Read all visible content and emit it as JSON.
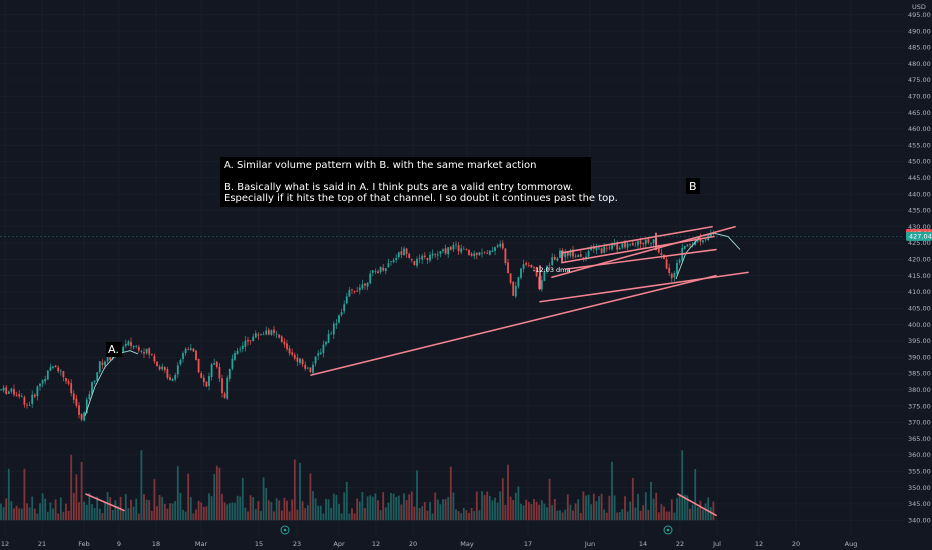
{
  "chart_data": {
    "type": "candlestick",
    "currency": "USD",
    "y_axis": {
      "min": 337,
      "max": 498,
      "ticks": [
        "495.00",
        "490.00",
        "485.00",
        "480.00",
        "475.00",
        "470.00",
        "465.00",
        "460.00",
        "455.00",
        "450.00",
        "445.00",
        "440.00",
        "435.00",
        "430.00",
        "425.00",
        "420.00",
        "415.00",
        "410.00",
        "405.00",
        "400.00",
        "395.00",
        "390.00",
        "385.00",
        "380.00",
        "375.00",
        "370.00",
        "365.00",
        "360.00",
        "355.00",
        "350.00",
        "345.00",
        "340.00"
      ],
      "price_tags": [
        {
          "value": 427.91,
          "label": "427.91",
          "color": "#ef5350"
        },
        {
          "value": 427.04,
          "label": "427.04",
          "color": "#26a69a"
        }
      ]
    },
    "x_axis": {
      "ticks": [
        "12",
        "21",
        "Feb",
        "9",
        "18",
        "Mar",
        "15",
        "23",
        "Apr",
        "12",
        "20",
        "May",
        "17",
        "Jun",
        "14",
        "22",
        "Jul",
        "12",
        "20",
        "Aug"
      ]
    },
    "price_anchors": [
      [
        0,
        380
      ],
      [
        18,
        379
      ],
      [
        28,
        375
      ],
      [
        40,
        382
      ],
      [
        55,
        388
      ],
      [
        66,
        383
      ],
      [
        75,
        376
      ],
      [
        82,
        370
      ],
      [
        90,
        380
      ],
      [
        100,
        388
      ],
      [
        115,
        391
      ],
      [
        128,
        394
      ],
      [
        140,
        393
      ],
      [
        150,
        391
      ],
      [
        160,
        387
      ],
      [
        172,
        383
      ],
      [
        182,
        391
      ],
      [
        190,
        394
      ],
      [
        198,
        387
      ],
      [
        206,
        380
      ],
      [
        212,
        388
      ],
      [
        218,
        386
      ],
      [
        224,
        377
      ],
      [
        228,
        386
      ],
      [
        236,
        391
      ],
      [
        246,
        395
      ],
      [
        258,
        397
      ],
      [
        268,
        398
      ],
      [
        278,
        396
      ],
      [
        288,
        392
      ],
      [
        300,
        389
      ],
      [
        310,
        386
      ],
      [
        322,
        393
      ],
      [
        336,
        401
      ],
      [
        350,
        410
      ],
      [
        362,
        412
      ],
      [
        374,
        416
      ],
      [
        386,
        418
      ],
      [
        396,
        421
      ],
      [
        406,
        423
      ],
      [
        414,
        419
      ],
      [
        422,
        420
      ],
      [
        432,
        421
      ],
      [
        442,
        422
      ],
      [
        452,
        424
      ],
      [
        462,
        423
      ],
      [
        472,
        421
      ],
      [
        480,
        423
      ],
      [
        488,
        421
      ],
      [
        494,
        424
      ],
      [
        499,
        425
      ],
      [
        503,
        423
      ],
      [
        508,
        415
      ],
      [
        513,
        409
      ],
      [
        518,
        415
      ],
      [
        524,
        418
      ],
      [
        530,
        419
      ],
      [
        536,
        416
      ],
      [
        540,
        410
      ],
      [
        545,
        417
      ],
      [
        552,
        420
      ],
      [
        562,
        422
      ],
      [
        572,
        422
      ],
      [
        582,
        421
      ],
      [
        592,
        423
      ],
      [
        602,
        423
      ],
      [
        612,
        424
      ],
      [
        622,
        424
      ],
      [
        632,
        424
      ],
      [
        642,
        425
      ],
      [
        652,
        426
      ],
      [
        660,
        422
      ],
      [
        666,
        418
      ],
      [
        672,
        415
      ],
      [
        678,
        419
      ],
      [
        684,
        424
      ],
      [
        690,
        425
      ],
      [
        698,
        426
      ],
      [
        706,
        427
      ],
      [
        712,
        428
      ],
      [
        716,
        428
      ]
    ],
    "volume_baseline": 340,
    "annotations": [
      {
        "kind": "note_box",
        "lines": [
          "A. Similar volume pattern with B. with the same market action",
          "",
          "B. Basically what is said in A. I think puts are a valid entry tommorow.",
          "Especially if it hits the top of that channel. I so doubt it continues past the top."
        ]
      },
      {
        "kind": "label",
        "text": "A."
      },
      {
        "kind": "label",
        "text": "B"
      },
      {
        "kind": "measure",
        "text": "-12.03 dma"
      }
    ],
    "trendlines": [
      {
        "from": [
          311,
          384.5
        ],
        "to": [
          716,
          415
        ]
      },
      {
        "from": [
          540,
          407
        ],
        "to": [
          748,
          416
        ]
      },
      {
        "from": [
          552,
          414.5
        ],
        "to": [
          735,
          430
        ]
      },
      {
        "from": [
          562,
          419
        ],
        "to": [
          714,
          427
        ]
      },
      {
        "from": [
          562,
          422
        ],
        "to": [
          712,
          430
        ]
      },
      {
        "from": [
          566,
          417
        ],
        "to": [
          716,
          423
        ]
      },
      {
        "from": [
          540,
          411
        ],
        "to": [
          540,
          418
        ]
      },
      {
        "from": [
          562,
          419
        ],
        "to": [
          562,
          422.5
        ]
      },
      {
        "from": [
          656,
          423
        ],
        "to": [
          656,
          428
        ]
      },
      {
        "from": [
          86,
          348
        ],
        "to": [
          124,
          343
        ]
      },
      {
        "from": [
          678,
          348
        ],
        "to": [
          716,
          341.5
        ]
      }
    ],
    "moving_average_curves": [
      {
        "points": [
          [
            85,
            372
          ],
          [
            95,
            381
          ],
          [
            105,
            387
          ],
          [
            117,
            391
          ],
          [
            130,
            392
          ],
          [
            138,
            391
          ]
        ]
      },
      {
        "points": [
          [
            676,
            414
          ],
          [
            686,
            422
          ],
          [
            700,
            427
          ],
          [
            714,
            428
          ],
          [
            728,
            427
          ],
          [
            740,
            423
          ]
        ]
      }
    ],
    "colors": {
      "background": "#131722",
      "up": "#26a69a",
      "down": "#ef5350",
      "line": "#f2838f",
      "ma": "#9fd8d2",
      "grid": "#1c202b",
      "note_bg": "#000000"
    }
  }
}
